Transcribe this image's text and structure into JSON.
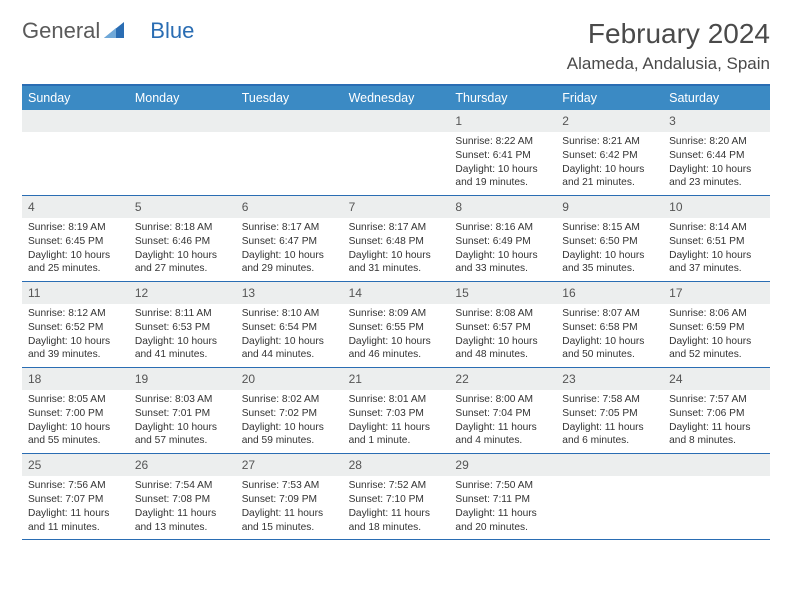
{
  "logo": {
    "general": "General",
    "blue": "Blue"
  },
  "title": {
    "month": "February 2024",
    "location": "Alameda, Andalusia, Spain"
  },
  "weekdays": [
    "Sunday",
    "Monday",
    "Tuesday",
    "Wednesday",
    "Thursday",
    "Friday",
    "Saturday"
  ],
  "colors": {
    "header_bar": "#3b8ac4",
    "border": "#2a6db3",
    "daynum_bg": "#eceeee",
    "text": "#333333"
  },
  "weeks": [
    [
      {
        "empty": true
      },
      {
        "empty": true
      },
      {
        "empty": true
      },
      {
        "empty": true
      },
      {
        "day": "1",
        "sunrise": "Sunrise: 8:22 AM",
        "sunset": "Sunset: 6:41 PM",
        "daylight": "Daylight: 10 hours and 19 minutes."
      },
      {
        "day": "2",
        "sunrise": "Sunrise: 8:21 AM",
        "sunset": "Sunset: 6:42 PM",
        "daylight": "Daylight: 10 hours and 21 minutes."
      },
      {
        "day": "3",
        "sunrise": "Sunrise: 8:20 AM",
        "sunset": "Sunset: 6:44 PM",
        "daylight": "Daylight: 10 hours and 23 minutes."
      }
    ],
    [
      {
        "day": "4",
        "sunrise": "Sunrise: 8:19 AM",
        "sunset": "Sunset: 6:45 PM",
        "daylight": "Daylight: 10 hours and 25 minutes."
      },
      {
        "day": "5",
        "sunrise": "Sunrise: 8:18 AM",
        "sunset": "Sunset: 6:46 PM",
        "daylight": "Daylight: 10 hours and 27 minutes."
      },
      {
        "day": "6",
        "sunrise": "Sunrise: 8:17 AM",
        "sunset": "Sunset: 6:47 PM",
        "daylight": "Daylight: 10 hours and 29 minutes."
      },
      {
        "day": "7",
        "sunrise": "Sunrise: 8:17 AM",
        "sunset": "Sunset: 6:48 PM",
        "daylight": "Daylight: 10 hours and 31 minutes."
      },
      {
        "day": "8",
        "sunrise": "Sunrise: 8:16 AM",
        "sunset": "Sunset: 6:49 PM",
        "daylight": "Daylight: 10 hours and 33 minutes."
      },
      {
        "day": "9",
        "sunrise": "Sunrise: 8:15 AM",
        "sunset": "Sunset: 6:50 PM",
        "daylight": "Daylight: 10 hours and 35 minutes."
      },
      {
        "day": "10",
        "sunrise": "Sunrise: 8:14 AM",
        "sunset": "Sunset: 6:51 PM",
        "daylight": "Daylight: 10 hours and 37 minutes."
      }
    ],
    [
      {
        "day": "11",
        "sunrise": "Sunrise: 8:12 AM",
        "sunset": "Sunset: 6:52 PM",
        "daylight": "Daylight: 10 hours and 39 minutes."
      },
      {
        "day": "12",
        "sunrise": "Sunrise: 8:11 AM",
        "sunset": "Sunset: 6:53 PM",
        "daylight": "Daylight: 10 hours and 41 minutes."
      },
      {
        "day": "13",
        "sunrise": "Sunrise: 8:10 AM",
        "sunset": "Sunset: 6:54 PM",
        "daylight": "Daylight: 10 hours and 44 minutes."
      },
      {
        "day": "14",
        "sunrise": "Sunrise: 8:09 AM",
        "sunset": "Sunset: 6:55 PM",
        "daylight": "Daylight: 10 hours and 46 minutes."
      },
      {
        "day": "15",
        "sunrise": "Sunrise: 8:08 AM",
        "sunset": "Sunset: 6:57 PM",
        "daylight": "Daylight: 10 hours and 48 minutes."
      },
      {
        "day": "16",
        "sunrise": "Sunrise: 8:07 AM",
        "sunset": "Sunset: 6:58 PM",
        "daylight": "Daylight: 10 hours and 50 minutes."
      },
      {
        "day": "17",
        "sunrise": "Sunrise: 8:06 AM",
        "sunset": "Sunset: 6:59 PM",
        "daylight": "Daylight: 10 hours and 52 minutes."
      }
    ],
    [
      {
        "day": "18",
        "sunrise": "Sunrise: 8:05 AM",
        "sunset": "Sunset: 7:00 PM",
        "daylight": "Daylight: 10 hours and 55 minutes."
      },
      {
        "day": "19",
        "sunrise": "Sunrise: 8:03 AM",
        "sunset": "Sunset: 7:01 PM",
        "daylight": "Daylight: 10 hours and 57 minutes."
      },
      {
        "day": "20",
        "sunrise": "Sunrise: 8:02 AM",
        "sunset": "Sunset: 7:02 PM",
        "daylight": "Daylight: 10 hours and 59 minutes."
      },
      {
        "day": "21",
        "sunrise": "Sunrise: 8:01 AM",
        "sunset": "Sunset: 7:03 PM",
        "daylight": "Daylight: 11 hours and 1 minute."
      },
      {
        "day": "22",
        "sunrise": "Sunrise: 8:00 AM",
        "sunset": "Sunset: 7:04 PM",
        "daylight": "Daylight: 11 hours and 4 minutes."
      },
      {
        "day": "23",
        "sunrise": "Sunrise: 7:58 AM",
        "sunset": "Sunset: 7:05 PM",
        "daylight": "Daylight: 11 hours and 6 minutes."
      },
      {
        "day": "24",
        "sunrise": "Sunrise: 7:57 AM",
        "sunset": "Sunset: 7:06 PM",
        "daylight": "Daylight: 11 hours and 8 minutes."
      }
    ],
    [
      {
        "day": "25",
        "sunrise": "Sunrise: 7:56 AM",
        "sunset": "Sunset: 7:07 PM",
        "daylight": "Daylight: 11 hours and 11 minutes."
      },
      {
        "day": "26",
        "sunrise": "Sunrise: 7:54 AM",
        "sunset": "Sunset: 7:08 PM",
        "daylight": "Daylight: 11 hours and 13 minutes."
      },
      {
        "day": "27",
        "sunrise": "Sunrise: 7:53 AM",
        "sunset": "Sunset: 7:09 PM",
        "daylight": "Daylight: 11 hours and 15 minutes."
      },
      {
        "day": "28",
        "sunrise": "Sunrise: 7:52 AM",
        "sunset": "Sunset: 7:10 PM",
        "daylight": "Daylight: 11 hours and 18 minutes."
      },
      {
        "day": "29",
        "sunrise": "Sunrise: 7:50 AM",
        "sunset": "Sunset: 7:11 PM",
        "daylight": "Daylight: 11 hours and 20 minutes."
      },
      {
        "empty": true
      },
      {
        "empty": true
      }
    ]
  ]
}
